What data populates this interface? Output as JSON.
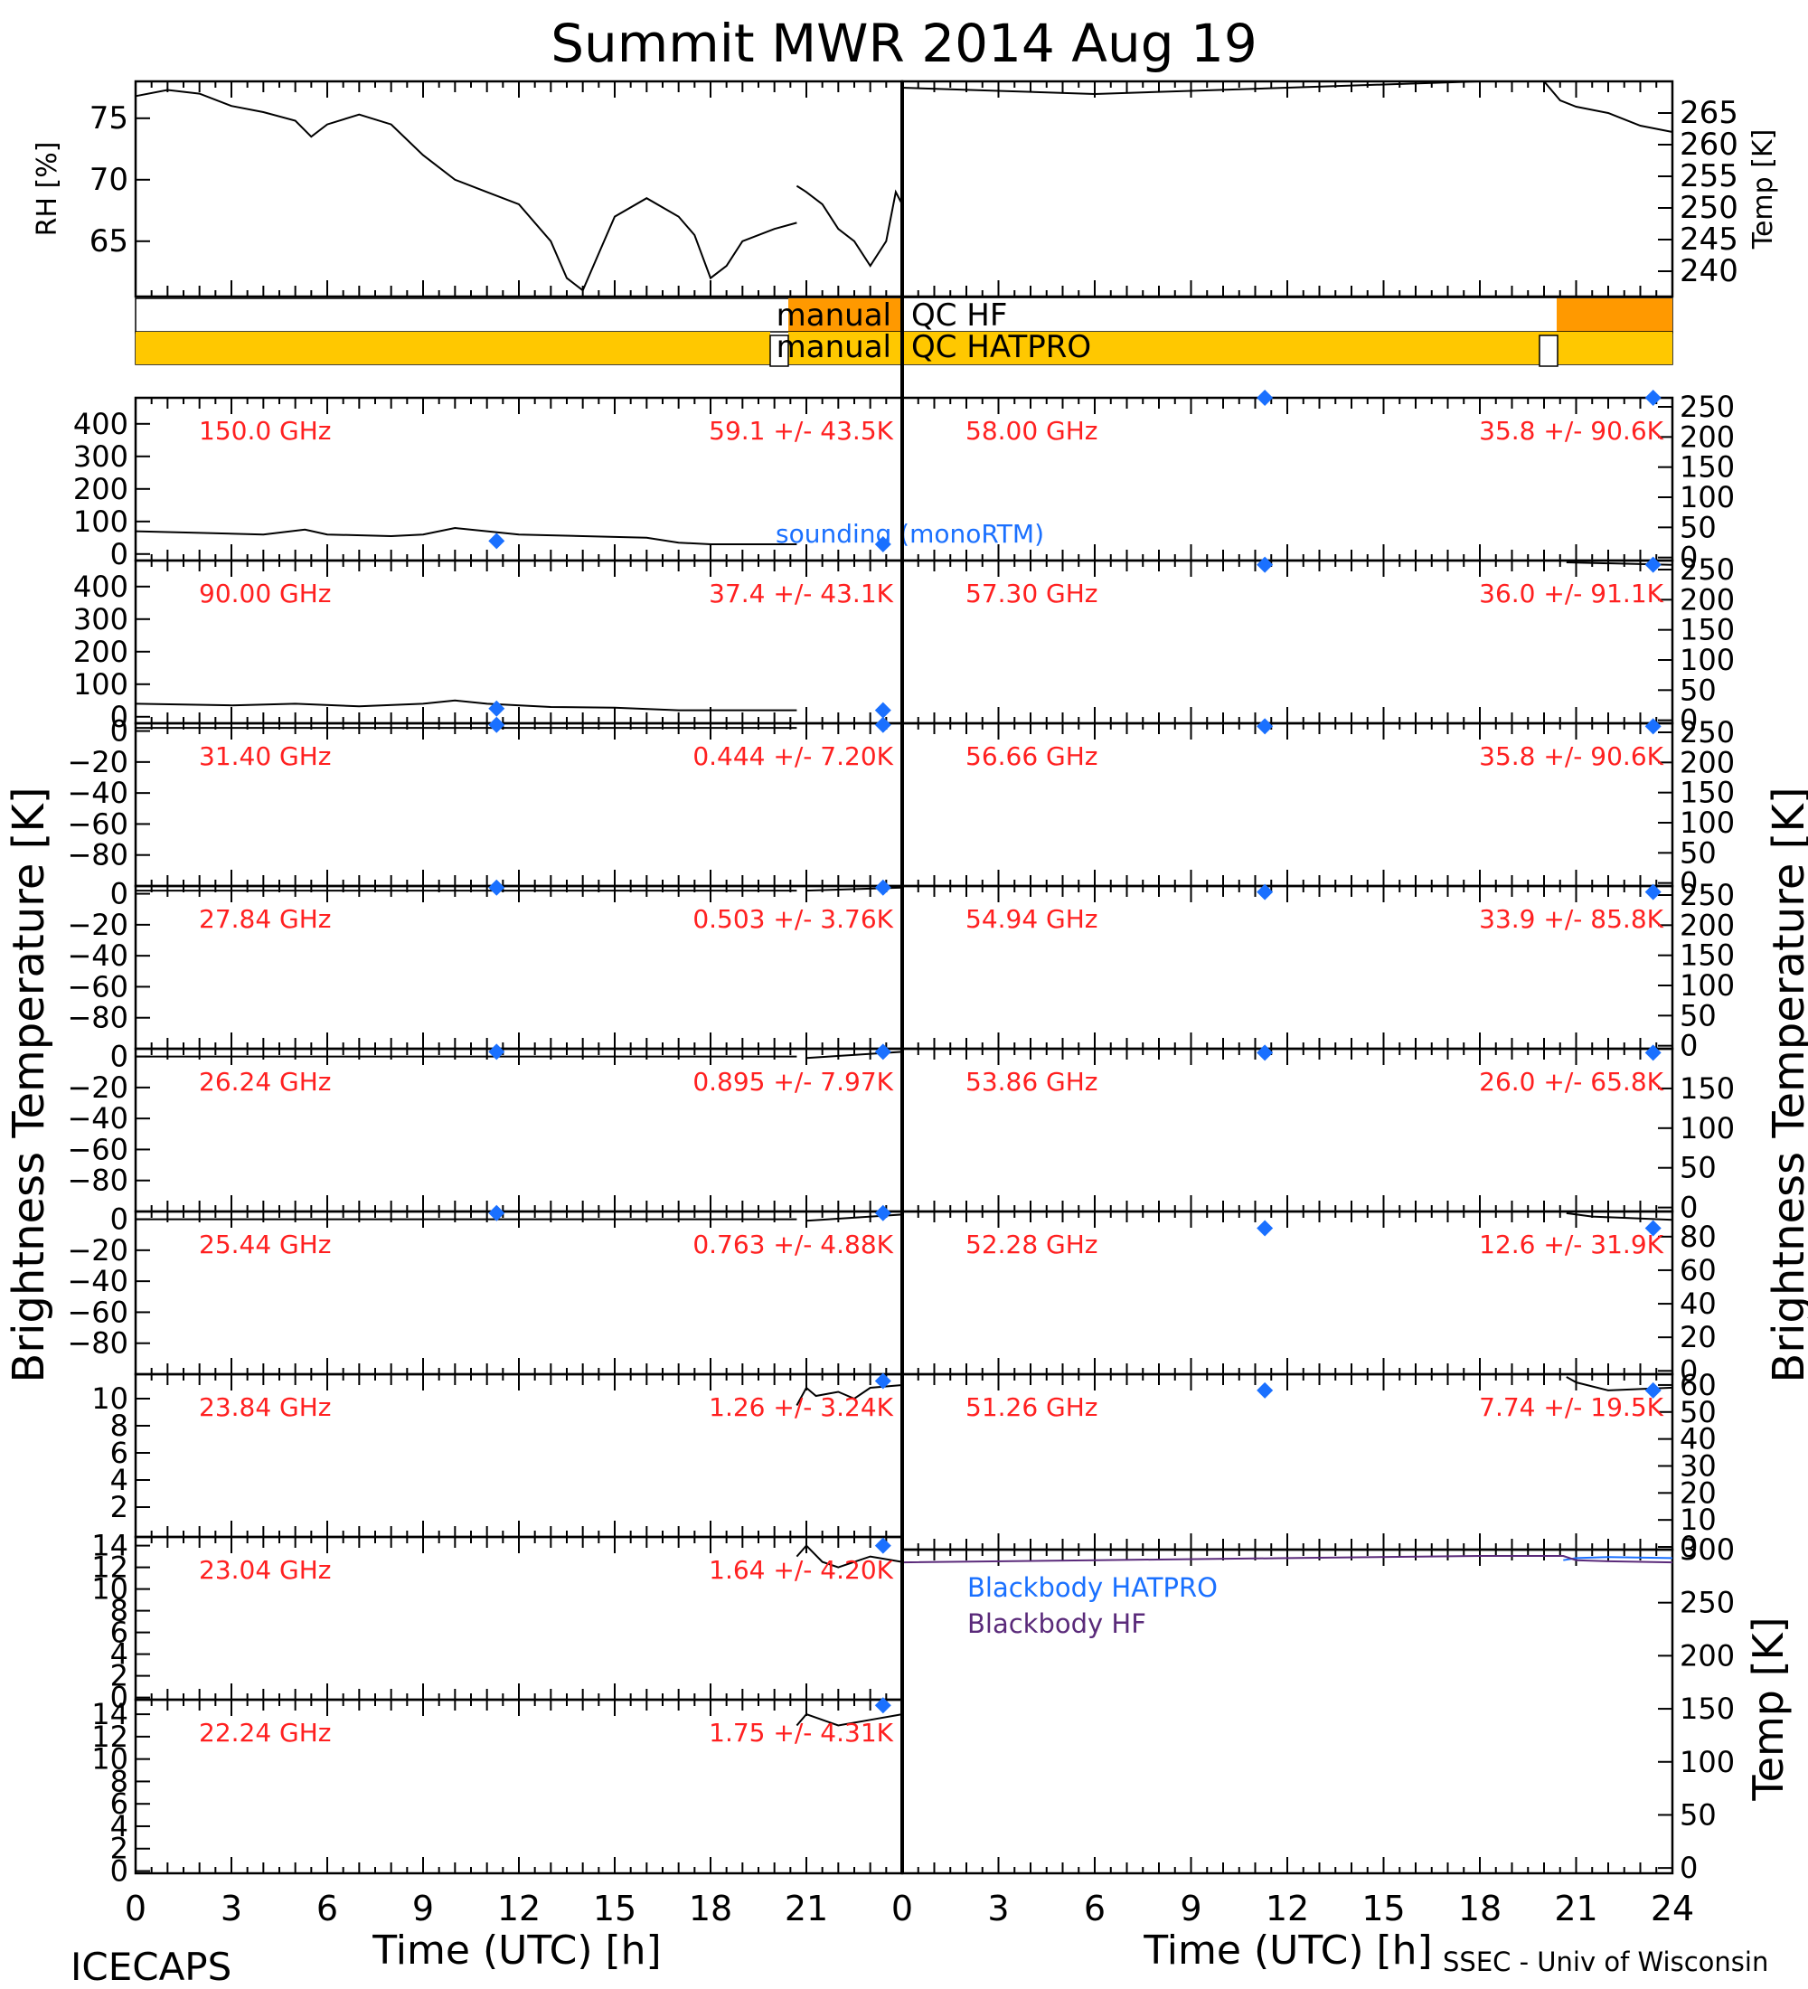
{
  "title": "Summit MWR 2014 Aug 19",
  "footer": {
    "left": "ICECAPS",
    "right": "SSEC - Univ of Wisconsin"
  },
  "colors": {
    "qc_hf": "#ff9900",
    "qc_hatpro": "#ffc800",
    "freq_label": "#ff2020",
    "sounding": "#1a70ff",
    "bb_hatpro": "#1a70ff",
    "bb_hf": "#5a2a7a",
    "trace": "#000000"
  },
  "x_axis": {
    "label": "Time (UTC) [h]",
    "range": [
      0,
      24
    ],
    "ticks": [
      "0",
      "3",
      "6",
      "9",
      "12",
      "15",
      "18",
      "21",
      "24"
    ],
    "left_panel_ticks": [
      "0",
      "3",
      "6",
      "9",
      "12",
      "15",
      "18",
      "21"
    ]
  },
  "chart_data": [
    {
      "type": "line",
      "id": "rh",
      "ylabel": "RH [%]",
      "ylim": [
        60.5,
        78
      ],
      "yticks": [
        65,
        70,
        75
      ],
      "series": [
        {
          "values": [
            [
              0,
              76.8
            ],
            [
              1,
              77.3
            ],
            [
              2,
              77
            ],
            [
              3,
              76
            ],
            [
              4,
              75.5
            ],
            [
              5,
              74.8
            ],
            [
              5.5,
              73.5
            ],
            [
              6,
              74.5
            ],
            [
              7,
              75.3
            ],
            [
              8,
              74.5
            ],
            [
              9,
              72
            ],
            [
              10,
              70
            ],
            [
              11,
              69
            ],
            [
              12,
              68
            ],
            [
              13,
              65
            ],
            [
              13.5,
              62
            ],
            [
              14,
              61
            ],
            [
              14.5,
              64
            ],
            [
              15,
              67
            ],
            [
              16,
              68.5
            ],
            [
              17,
              67
            ],
            [
              17.5,
              65.5
            ],
            [
              18,
              62
            ],
            [
              18.5,
              63
            ],
            [
              19,
              65
            ],
            [
              20,
              66
            ],
            [
              20.7,
              66.5
            ]
          ]
        },
        {
          "values": [
            [
              20.7,
              69.5
            ],
            [
              21,
              69
            ],
            [
              21.5,
              68
            ],
            [
              22,
              66
            ],
            [
              22.5,
              65
            ],
            [
              23,
              63
            ],
            [
              23.5,
              65
            ],
            [
              23.8,
              69
            ],
            [
              24,
              68
            ]
          ]
        }
      ]
    },
    {
      "type": "line",
      "id": "temp",
      "ylabel": "Temp [K]",
      "ylim": [
        236,
        270
      ],
      "yticks": [
        240,
        245,
        250,
        255,
        260,
        265
      ],
      "series": [
        {
          "values": [
            [
              0,
              269
            ],
            [
              3,
              268.5
            ],
            [
              6,
              268
            ],
            [
              9,
              268.5
            ],
            [
              12,
              269
            ],
            [
              15,
              269.5
            ],
            [
              18,
              270
            ],
            [
              20,
              270
            ],
            [
              20.5,
              267
            ],
            [
              21,
              266
            ],
            [
              22,
              265
            ],
            [
              23,
              263
            ],
            [
              24,
              262
            ]
          ]
        }
      ]
    },
    {
      "type": "table",
      "id": "qc_flags",
      "rows": [
        {
          "label": "manual QC HF",
          "segments": [
            [
              20.4,
              24
            ]
          ],
          "gaps": [
            [
              20.4,
              20.4
            ],
            [
              23.5,
              24
            ]
          ]
        },
        {
          "label": "manual QC HATPRO",
          "segments": [
            [
              0,
              20.05
            ],
            [
              20.4,
              24
            ]
          ],
          "gaps": [
            [
              20.05,
              20.4
            ],
            [
              23.55,
              24
            ]
          ]
        }
      ]
    },
    {
      "type": "line",
      "id": "ch150",
      "freq": "150.0 GHz",
      "stat": "59.1 +/- 43.5K",
      "ylim": [
        -20,
        480
      ],
      "yticks": [
        0,
        100,
        200,
        300,
        400
      ],
      "sounding": [
        [
          11.3,
          40
        ],
        [
          23.4,
          30
        ]
      ],
      "sounding_label": "sounding (monoRTM)",
      "series": [
        {
          "values": [
            [
              0,
              70
            ],
            [
              2,
              65
            ],
            [
              4,
              60
            ],
            [
              5.3,
              75
            ],
            [
              6,
              60
            ],
            [
              8,
              55
            ],
            [
              9,
              60
            ],
            [
              10,
              80
            ],
            [
              11,
              70
            ],
            [
              12,
              60
            ],
            [
              14,
              55
            ],
            [
              16,
              50
            ],
            [
              17,
              35
            ],
            [
              18,
              30
            ],
            [
              20,
              30
            ],
            [
              20.7,
              30
            ]
          ]
        }
      ]
    },
    {
      "type": "line",
      "id": "ch90",
      "freq": "90.00 GHz",
      "stat": "37.4 +/- 43.1K",
      "ylim": [
        -20,
        480
      ],
      "yticks": [
        0,
        100,
        200,
        300,
        400
      ],
      "sounding": [
        [
          11.3,
          25
        ],
        [
          23.4,
          20
        ]
      ],
      "series": [
        {
          "values": [
            [
              0,
              40
            ],
            [
              3,
              35
            ],
            [
              5,
              40
            ],
            [
              7,
              32
            ],
            [
              9,
              40
            ],
            [
              10,
              50
            ],
            [
              11,
              40
            ],
            [
              13,
              30
            ],
            [
              15,
              28
            ],
            [
              17,
              20
            ],
            [
              20.7,
              20
            ]
          ]
        }
      ]
    },
    {
      "type": "line",
      "id": "ch31",
      "freq": "31.40 GHz",
      "stat": "0.444 +/- 7.20K",
      "ylim": [
        -100,
        5
      ],
      "yticks": [
        0,
        -20,
        -40,
        -60,
        -80
      ],
      "sounding": [
        [
          11.3,
          4
        ],
        [
          23.4,
          4
        ]
      ],
      "series": [
        {
          "values": [
            [
              0,
              2
            ],
            [
              20.7,
              2
            ]
          ]
        }
      ]
    },
    {
      "type": "line",
      "id": "ch27",
      "freq": "27.84 GHz",
      "stat": "0.503 +/- 3.76K",
      "ylim": [
        -100,
        5
      ],
      "yticks": [
        0,
        -20,
        -40,
        -60,
        -80
      ],
      "sounding": [
        [
          11.3,
          4
        ],
        [
          23.4,
          4
        ]
      ],
      "series": [
        {
          "values": [
            [
              0,
              2
            ],
            [
              20.7,
              2
            ]
          ]
        },
        {
          "values": [
            [
              21,
              2
            ],
            [
              24,
              4
            ]
          ]
        }
      ]
    },
    {
      "type": "line",
      "id": "ch26",
      "freq": "26.24 GHz",
      "stat": "0.895 +/- 7.97K",
      "ylim": [
        -100,
        5
      ],
      "yticks": [
        0,
        -20,
        -40,
        -60,
        -80
      ],
      "sounding": [
        [
          11.3,
          3
        ],
        [
          23.4,
          3
        ]
      ],
      "series": [
        {
          "values": [
            [
              0,
              0
            ],
            [
              20.7,
              0
            ]
          ]
        },
        {
          "values": [
            [
              21,
              -1
            ],
            [
              24,
              3
            ]
          ]
        }
      ]
    },
    {
      "type": "line",
      "id": "ch25",
      "freq": "25.44 GHz",
      "stat": "0.763 +/- 4.88K",
      "ylim": [
        -100,
        5
      ],
      "yticks": [
        0,
        -20,
        -40,
        -60,
        -80
      ],
      "sounding": [
        [
          11.3,
          4
        ],
        [
          23.4,
          4
        ]
      ],
      "series": [
        {
          "values": [
            [
              0,
              0
            ],
            [
              20.7,
              0
            ]
          ]
        },
        {
          "values": [
            [
              21,
              -1
            ],
            [
              24,
              3
            ]
          ]
        }
      ]
    },
    {
      "type": "line",
      "id": "ch23_84",
      "freq": "23.84 GHz",
      "stat": "1.26 +/- 3.24K",
      "ylim": [
        -0.2,
        11.8
      ],
      "yticks": [
        2,
        4,
        6,
        8,
        10
      ],
      "sounding": [
        [
          23.4,
          11.3
        ]
      ],
      "series": [
        {
          "values": [
            [
              20.7,
              9.5
            ],
            [
              21,
              10.8
            ],
            [
              21.3,
              10.2
            ],
            [
              22,
              10.5
            ],
            [
              22.5,
              10
            ],
            [
              23,
              10.8
            ],
            [
              24,
              11
            ]
          ]
        }
      ]
    },
    {
      "type": "line",
      "id": "ch23_04",
      "freq": "23.04 GHz",
      "stat": "1.64 +/- 4.20K",
      "ylim": [
        -0.2,
        14.8
      ],
      "yticks": [
        0,
        2,
        4,
        6,
        8,
        10,
        12,
        14
      ],
      "sounding": [
        [
          23.4,
          14
        ]
      ],
      "series": [
        {
          "values": [
            [
              20.7,
              13
            ],
            [
              21,
              14
            ],
            [
              21.5,
              12.5
            ],
            [
              22,
              12
            ],
            [
              23,
              13
            ],
            [
              24,
              12.5
            ]
          ]
        }
      ]
    },
    {
      "type": "line",
      "id": "ch22_24",
      "freq": "22.24 GHz",
      "stat": "1.75 +/- 4.31K",
      "ylim": [
        -0.2,
        15.3
      ],
      "yticks": [
        0,
        2,
        4,
        6,
        8,
        10,
        12,
        14
      ],
      "sounding": [
        [
          23.4,
          14.8
        ]
      ],
      "series": [
        {
          "values": [
            [
              20.7,
              13
            ],
            [
              21,
              14
            ],
            [
              22,
              13
            ],
            [
              23,
              13.5
            ],
            [
              24,
              14
            ]
          ]
        }
      ]
    },
    {
      "type": "line",
      "id": "ch58",
      "freq": "58.00 GHz",
      "stat": "35.8 +/- 90.6K",
      "ylim": [
        -5,
        265
      ],
      "yticks": [
        0,
        50,
        100,
        150,
        200,
        250
      ],
      "sounding": [
        [
          11.3,
          265
        ],
        [
          23.4,
          265
        ]
      ],
      "series": []
    },
    {
      "type": "line",
      "id": "ch57_3",
      "freq": "57.30 GHz",
      "stat": "36.0 +/- 91.1K",
      "ylim": [
        -5,
        265
      ],
      "yticks": [
        0,
        50,
        100,
        150,
        200,
        250
      ],
      "sounding": [
        [
          11.3,
          258
        ],
        [
          23.4,
          258
        ]
      ],
      "series": [
        {
          "values": [
            [
              20.7,
              262
            ],
            [
              24,
              258
            ]
          ]
        }
      ]
    },
    {
      "type": "line",
      "id": "ch56_66",
      "freq": "56.66 GHz",
      "stat": "35.8 +/- 90.6K",
      "ylim": [
        -5,
        265
      ],
      "yticks": [
        0,
        50,
        100,
        150,
        200,
        250
      ],
      "sounding": [
        [
          11.3,
          260
        ],
        [
          23.4,
          260
        ]
      ],
      "series": []
    },
    {
      "type": "line",
      "id": "ch54_94",
      "freq": "54.94 GHz",
      "stat": "33.9 +/- 85.8K",
      "ylim": [
        -5,
        265
      ],
      "yticks": [
        0,
        50,
        100,
        150,
        200,
        250
      ],
      "sounding": [
        [
          11.3,
          255
        ],
        [
          23.4,
          255
        ]
      ],
      "series": []
    },
    {
      "type": "line",
      "id": "ch53_86",
      "freq": "53.86 GHz",
      "stat": "26.0 +/- 65.8K",
      "ylim": [
        -5,
        200
      ],
      "yticks": [
        0,
        50,
        100,
        150
      ],
      "sounding": [
        [
          11.3,
          195
        ],
        [
          23.4,
          195
        ]
      ],
      "series": []
    },
    {
      "type": "line",
      "id": "ch52_28",
      "freq": "52.28 GHz",
      "stat": "12.6 +/- 31.9K",
      "ylim": [
        -2,
        95
      ],
      "yticks": [
        0,
        20,
        40,
        60,
        80
      ],
      "sounding": [
        [
          11.3,
          85
        ],
        [
          23.4,
          85
        ]
      ],
      "series": [
        {
          "values": [
            [
              20.7,
              94
            ],
            [
              21.5,
              92
            ],
            [
              24,
              90
            ]
          ]
        }
      ]
    },
    {
      "type": "line",
      "id": "ch51_26",
      "freq": "51.26 GHz",
      "stat": "7.74 +/- 19.5K",
      "ylim": [
        -1,
        64
      ],
      "yticks": [
        0,
        10,
        20,
        30,
        40,
        50,
        60
      ],
      "sounding": [
        [
          11.3,
          58
        ],
        [
          23.4,
          58
        ]
      ],
      "series": [
        {
          "values": [
            [
              20.7,
              63
            ],
            [
              21,
              61
            ],
            [
              22,
              58
            ],
            [
              24,
              59
            ]
          ]
        }
      ]
    },
    {
      "type": "line",
      "id": "blackbody",
      "ylabel": "Temp [K]",
      "ylim": [
        -5,
        300
      ],
      "yticks": [
        0,
        50,
        100,
        150,
        200,
        250,
        300
      ],
      "series": [
        {
          "name": "Blackbody HATPRO",
          "values": [
            [
              20.6,
              290
            ],
            [
              21,
              292
            ],
            [
              22,
              293
            ],
            [
              24,
              292
            ]
          ]
        },
        {
          "name": "Blackbody HF",
          "values": [
            [
              0,
              288
            ],
            [
              6,
              290
            ],
            [
              12,
              292
            ],
            [
              18,
              294
            ],
            [
              20.6,
              294
            ],
            [
              21,
              290
            ],
            [
              22,
              289
            ],
            [
              24,
              288
            ]
          ]
        }
      ]
    }
  ],
  "left_ylabel": "Brightness Temperature [K]",
  "right_ylabel": "Brightness Temperature [K]"
}
